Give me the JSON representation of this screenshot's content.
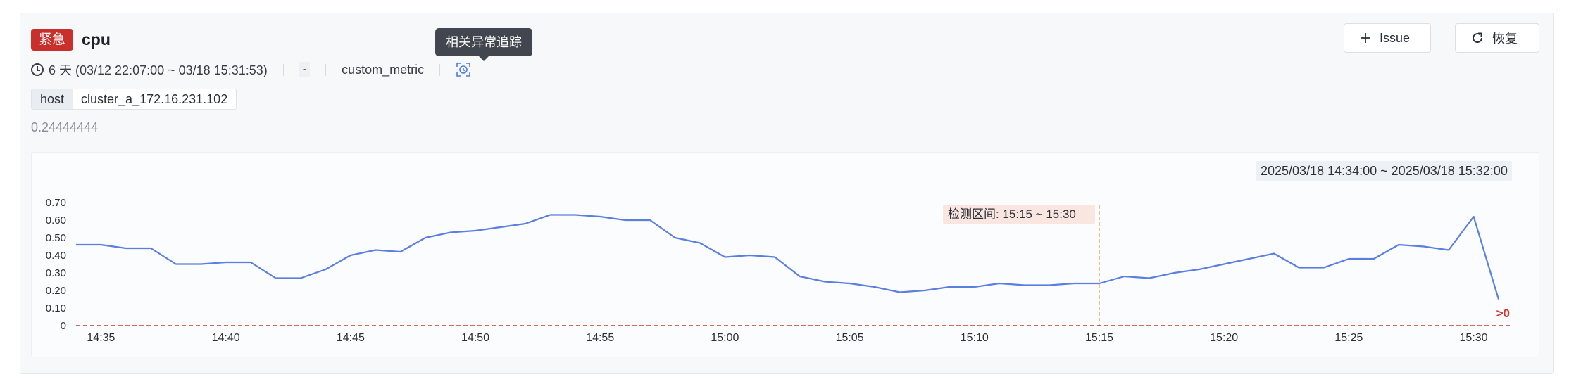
{
  "header": {
    "severity": "紧急",
    "title": "cpu"
  },
  "meta": {
    "duration": "6 天 (03/12 22:07:00 ~ 03/18 15:31:53)",
    "dash": "-",
    "metric": "custom_metric"
  },
  "tooltip": "相关异常追踪",
  "tag": {
    "key": "host",
    "value": "cluster_a_172.16.231.102"
  },
  "current_value": "0.24444444",
  "buttons": {
    "issue": "Issue",
    "restore": "恢复"
  },
  "time_range": "2025/03/18 14:34:00 ~ 2025/03/18 15:32:00",
  "detect_label": "检测区间: 15:15 ~ 15:30",
  "threshold_label": ">0",
  "colors": {
    "severity": "#c9302c",
    "line": "#5b7fe0",
    "threshold": "#d0342c",
    "detect": "#f5a55e"
  },
  "chart_data": {
    "type": "line",
    "x_start": "14:34",
    "x_step_minutes": 1,
    "xticks": [
      "14:35",
      "14:40",
      "14:45",
      "14:50",
      "14:55",
      "15:00",
      "15:05",
      "15:10",
      "15:15",
      "15:20",
      "15:25",
      "15:30"
    ],
    "yticks": [
      "0",
      "0.10",
      "0.20",
      "0.30",
      "0.40",
      "0.50",
      "0.60",
      "0.70"
    ],
    "ylim": [
      0,
      0.7
    ],
    "threshold": 0,
    "detect_range": [
      "15:15",
      "15:30"
    ],
    "series": [
      {
        "values": [
          0.46,
          0.46,
          0.44,
          0.44,
          0.35,
          0.35,
          0.36,
          0.36,
          0.27,
          0.27,
          0.32,
          0.4,
          0.43,
          0.42,
          0.5,
          0.53,
          0.54,
          0.56,
          0.58,
          0.63,
          0.63,
          0.62,
          0.6,
          0.6,
          0.5,
          0.47,
          0.39,
          0.4,
          0.39,
          0.28,
          0.25,
          0.24,
          0.22,
          0.19,
          0.2,
          0.22,
          0.22,
          0.24,
          0.23,
          0.23,
          0.24,
          0.24,
          0.28,
          0.27,
          0.3,
          0.32,
          0.35,
          0.38,
          0.41,
          0.33,
          0.33,
          0.38,
          0.38,
          0.46,
          0.45,
          0.43,
          0.62,
          0.15
        ]
      }
    ]
  }
}
